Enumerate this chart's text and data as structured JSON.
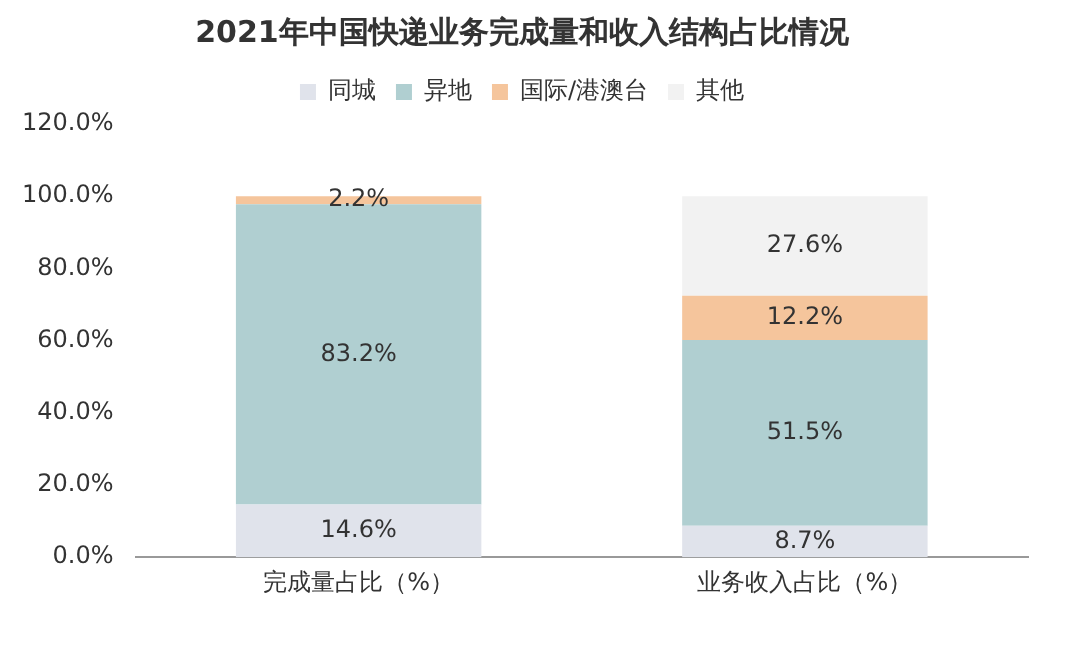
{
  "chart_data": {
    "type": "bar",
    "stacked": true,
    "title": "2021年中国快递业务完成量和收入结构占比情况",
    "categories": [
      "完成量占比（%）",
      "业务收入占比（%）"
    ],
    "series": [
      {
        "name": "同城",
        "color": "#e0e3eb",
        "values": [
          14.6,
          8.7
        ],
        "value_labels": [
          "14.6%",
          "8.7%"
        ]
      },
      {
        "name": "异地",
        "color": "#b0cfd1",
        "values": [
          83.2,
          51.5
        ],
        "value_labels": [
          "83.2%",
          "51.5%"
        ]
      },
      {
        "name": "国际/港澳台",
        "color": "#f5c59c",
        "values": [
          2.2,
          12.2
        ],
        "value_labels": [
          "2.2%",
          "12.2%"
        ]
      },
      {
        "name": "其他",
        "color": "#f2f2f2",
        "values": [
          0,
          27.6
        ],
        "value_labels": [
          null,
          "27.6%"
        ]
      }
    ],
    "ylim": [
      0,
      120
    ],
    "yticks": [
      {
        "value": 0,
        "label": "0.0%"
      },
      {
        "value": 20,
        "label": "20.0%"
      },
      {
        "value": 40,
        "label": "40.0%"
      },
      {
        "value": 60,
        "label": "60.0%"
      },
      {
        "value": 80,
        "label": "80.0%"
      },
      {
        "value": 100,
        "label": "100.0%"
      },
      {
        "value": 120,
        "label": "120.0%"
      }
    ],
    "grid": false,
    "legend": "top"
  }
}
